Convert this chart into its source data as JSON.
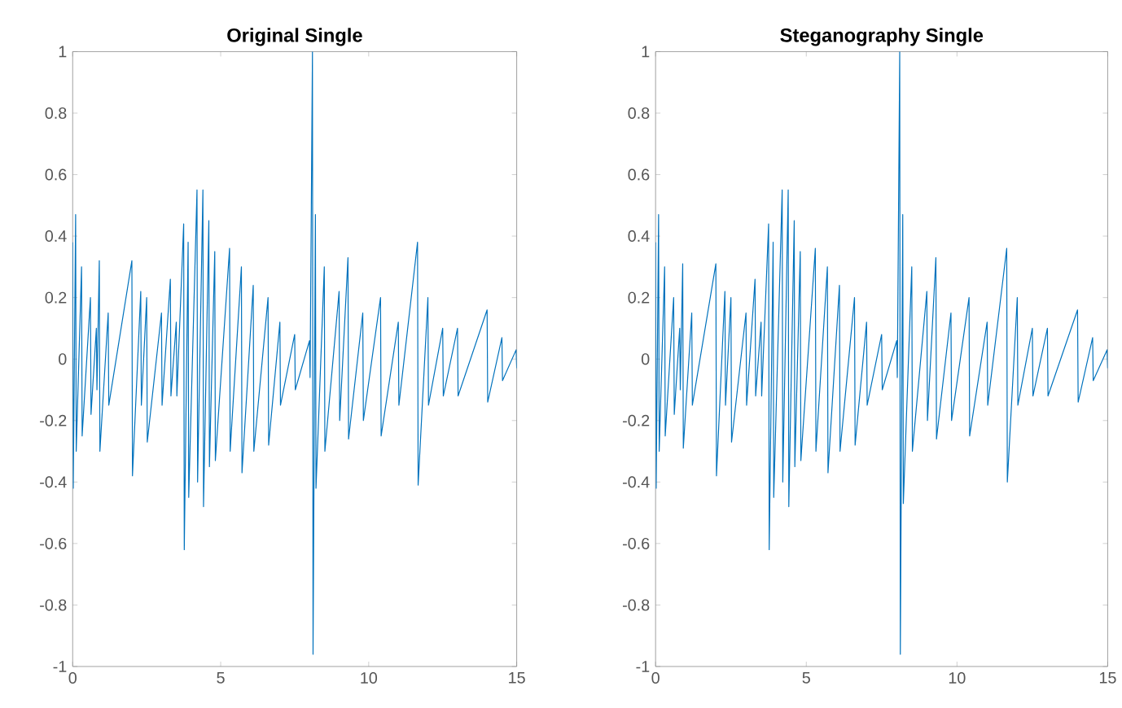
{
  "chart_data": [
    {
      "type": "line",
      "title": "Original Single",
      "xlim": [
        0,
        15
      ],
      "ylim": [
        -1,
        1
      ],
      "xticks": [
        0,
        5,
        10,
        15
      ],
      "yticks": [
        -1,
        -0.8,
        -0.6,
        -0.4,
        -0.2,
        0,
        0.2,
        0.4,
        0.6,
        0.8,
        1
      ],
      "x": [
        0,
        0.02,
        0.1,
        0.12,
        0.3,
        0.32,
        0.6,
        0.62,
        0.8,
        0.82,
        0.9,
        0.92,
        1.2,
        1.22,
        2.0,
        2.02,
        2.3,
        2.32,
        2.5,
        2.52,
        3.0,
        3.02,
        3.3,
        3.32,
        3.5,
        3.52,
        3.75,
        3.77,
        3.9,
        3.92,
        4.2,
        4.22,
        4.4,
        4.42,
        4.6,
        4.62,
        4.8,
        4.82,
        5.3,
        5.32,
        5.7,
        5.72,
        6.1,
        6.12,
        6.6,
        6.62,
        7.0,
        7.02,
        7.5,
        7.52,
        8.0,
        8.02,
        8.1,
        8.12,
        8.2,
        8.22,
        8.5,
        8.52,
        9.0,
        9.02,
        9.3,
        9.32,
        9.8,
        9.82,
        10.4,
        10.42,
        11.0,
        11.02,
        11.65,
        11.67,
        12.0,
        12.02,
        12.5,
        12.52,
        13.0,
        13.02,
        14.0,
        14.02,
        14.5,
        14.52,
        14.98,
        15.0
      ],
      "series": [
        {
          "color": "#0072bd",
          "values": [
            0.38,
            -0.42,
            0.47,
            -0.3,
            0.3,
            -0.25,
            0.2,
            -0.18,
            0.1,
            -0.1,
            0.32,
            -0.3,
            0.15,
            -0.15,
            0.32,
            -0.38,
            0.22,
            -0.15,
            0.2,
            -0.27,
            0.15,
            -0.15,
            0.26,
            -0.12,
            0.12,
            -0.12,
            0.44,
            -0.62,
            0.38,
            -0.45,
            0.55,
            -0.4,
            0.55,
            -0.48,
            0.45,
            -0.35,
            0.35,
            -0.33,
            0.36,
            -0.3,
            0.3,
            -0.37,
            0.24,
            -0.3,
            0.2,
            -0.28,
            0.12,
            -0.15,
            0.08,
            -0.1,
            0.06,
            -0.06,
            1.0,
            -0.96,
            0.47,
            -0.42,
            0.3,
            -0.3,
            0.22,
            -0.2,
            0.33,
            -0.26,
            0.15,
            -0.2,
            0.2,
            -0.25,
            0.12,
            -0.15,
            0.38,
            -0.41,
            0.2,
            -0.15,
            0.1,
            -0.12,
            0.1,
            -0.12,
            0.16,
            -0.14,
            0.07,
            -0.07,
            0.03,
            -0.03
          ]
        }
      ]
    },
    {
      "type": "line",
      "title": "Steganography Single",
      "xlim": [
        0,
        15
      ],
      "ylim": [
        -1,
        1
      ],
      "xticks": [
        0,
        5,
        10,
        15
      ],
      "yticks": [
        -1,
        -0.8,
        -0.6,
        -0.4,
        -0.2,
        0,
        0.2,
        0.4,
        0.6,
        0.8,
        1
      ],
      "x": [
        0,
        0.02,
        0.1,
        0.12,
        0.3,
        0.32,
        0.6,
        0.62,
        0.8,
        0.82,
        0.9,
        0.92,
        1.2,
        1.22,
        2.0,
        2.02,
        2.3,
        2.32,
        2.5,
        2.52,
        3.0,
        3.02,
        3.3,
        3.32,
        3.5,
        3.52,
        3.75,
        3.77,
        3.9,
        3.92,
        4.2,
        4.22,
        4.4,
        4.42,
        4.6,
        4.62,
        4.8,
        4.82,
        5.3,
        5.32,
        5.7,
        5.72,
        6.1,
        6.12,
        6.6,
        6.62,
        7.0,
        7.02,
        7.5,
        7.52,
        8.0,
        8.02,
        8.1,
        8.12,
        8.2,
        8.22,
        8.5,
        8.52,
        9.0,
        9.02,
        9.3,
        9.32,
        9.8,
        9.82,
        10.4,
        10.42,
        11.0,
        11.02,
        11.65,
        11.67,
        12.0,
        12.02,
        12.5,
        12.52,
        13.0,
        13.02,
        14.0,
        14.02,
        14.5,
        14.52,
        14.98,
        15.0
      ],
      "series": [
        {
          "color": "#0072bd",
          "values": [
            0.38,
            -0.42,
            0.47,
            -0.3,
            0.3,
            -0.25,
            0.2,
            -0.18,
            0.1,
            -0.1,
            0.31,
            -0.29,
            0.15,
            -0.15,
            0.31,
            -0.38,
            0.22,
            -0.15,
            0.2,
            -0.27,
            0.15,
            -0.15,
            0.26,
            -0.12,
            0.12,
            -0.12,
            0.44,
            -0.62,
            0.38,
            -0.45,
            0.55,
            -0.4,
            0.55,
            -0.48,
            0.45,
            -0.35,
            0.35,
            -0.33,
            0.36,
            -0.3,
            0.3,
            -0.37,
            0.24,
            -0.3,
            0.2,
            -0.28,
            0.12,
            -0.15,
            0.08,
            -0.1,
            0.06,
            -0.06,
            1.0,
            -0.96,
            0.47,
            -0.47,
            0.3,
            -0.3,
            0.22,
            -0.2,
            0.33,
            -0.26,
            0.15,
            -0.2,
            0.2,
            -0.25,
            0.12,
            -0.15,
            0.36,
            -0.4,
            0.2,
            -0.15,
            0.1,
            -0.12,
            0.1,
            -0.12,
            0.16,
            -0.14,
            0.07,
            -0.07,
            0.03,
            -0.03
          ]
        }
      ]
    }
  ]
}
